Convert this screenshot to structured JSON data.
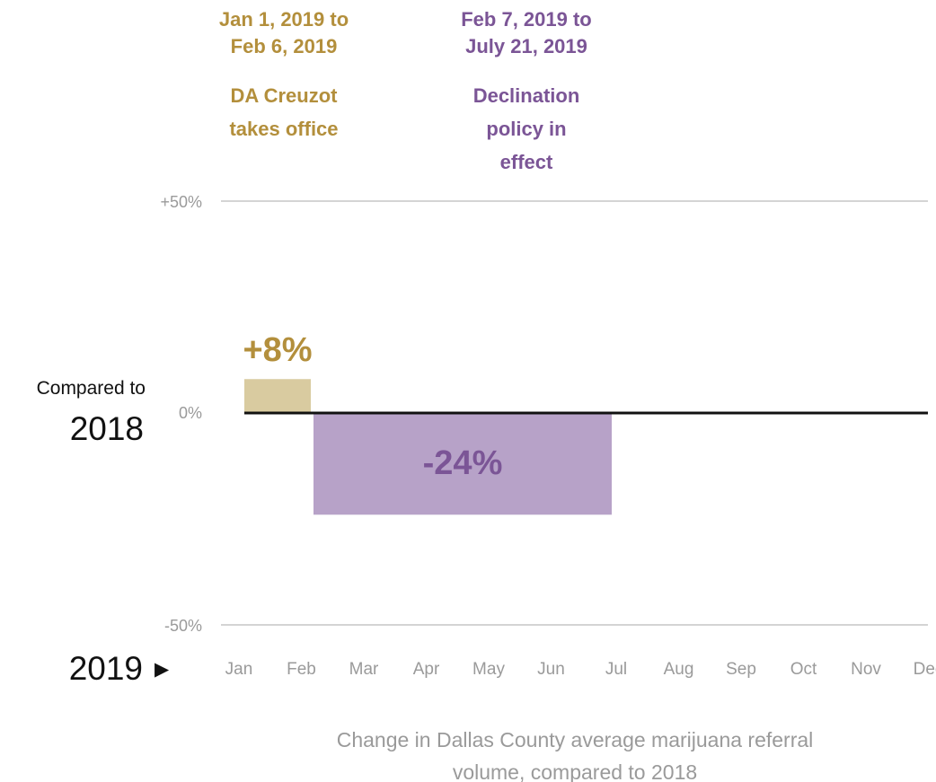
{
  "chart_data": {
    "type": "bar",
    "title": "",
    "caption": [
      "Change in Dallas County average marijuana referral",
      "volume, compared to 2018"
    ],
    "ylim": [
      -50,
      50
    ],
    "yticks": [
      {
        "value": 50,
        "label": "+50%"
      },
      {
        "value": 0,
        "label": "0%"
      },
      {
        "value": -50,
        "label": "-50%"
      }
    ],
    "months": [
      "Jan",
      "Feb",
      "Mar",
      "Apr",
      "May",
      "Jun",
      "Jul",
      "Aug",
      "Sep",
      "Oct",
      "Nov",
      "Dec"
    ],
    "baseline_label": {
      "line1": "Compared to",
      "line2": "2018"
    },
    "year_label": {
      "text": "2019",
      "arrow": "▶"
    },
    "series": [
      {
        "start": "2019-01-01",
        "end": "2019-02-06",
        "value": 8,
        "value_label": "+8%",
        "date_label": [
          "Jan 1, 2019 to",
          "Feb 6, 2019"
        ],
        "event_label": [
          "DA Creuzot",
          "takes office"
        ],
        "color": "#d9cba0",
        "text_color": "#b38f3c"
      },
      {
        "start": "2019-02-07",
        "end": "2019-07-21",
        "value": -24,
        "value_label": "-24%",
        "date_label": [
          "Feb 7, 2019 to",
          "July 21, 2019"
        ],
        "event_label": [
          "Declination",
          "policy in",
          "effect"
        ],
        "color": "#b7a2c8",
        "text_color": "#7b5596"
      }
    ],
    "colors": {
      "zero_line": "#111111",
      "grid": "#aaaaaa",
      "tick_text": "#9a9a9a"
    }
  }
}
